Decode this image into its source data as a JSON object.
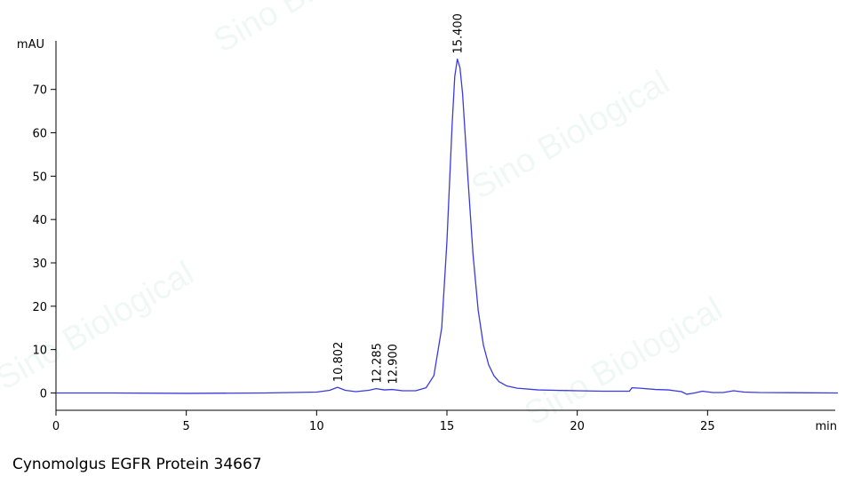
{
  "chart_data": {
    "type": "line",
    "ylabel": "mAU",
    "xlabel": "min",
    "caption": "Cynomolgus EGFR Protein 34667",
    "watermark": "Sino Biological",
    "xlim": [
      0,
      30
    ],
    "ylim": [
      -4,
      81
    ],
    "xticks": [
      0,
      5,
      10,
      15,
      20,
      25
    ],
    "yticks": [
      0,
      10,
      20,
      30,
      40,
      50,
      60,
      70
    ],
    "x": [
      0,
      2,
      5,
      8,
      10,
      10.5,
      10.8,
      11.1,
      11.5,
      12.0,
      12.285,
      12.6,
      12.9,
      13.3,
      13.8,
      14.2,
      14.5,
      14.8,
      15.0,
      15.2,
      15.3,
      15.4,
      15.5,
      15.6,
      15.8,
      16.0,
      16.2,
      16.4,
      16.6,
      16.8,
      17.0,
      17.3,
      17.7,
      18.5,
      20,
      21,
      22,
      22.1,
      22.4,
      23,
      23.5,
      24,
      24.2,
      24.5,
      24.8,
      25.2,
      25.6,
      26,
      26.4,
      27,
      30
    ],
    "series": [
      {
        "color": "#3a3ae0",
        "values": [
          0,
          0,
          -0.1,
          0,
          0.2,
          0.6,
          1.3,
          0.6,
          0.3,
          0.6,
          1.0,
          0.7,
          0.8,
          0.5,
          0.5,
          1.2,
          4,
          15,
          35,
          62,
          73,
          77,
          75,
          69,
          50,
          32,
          19,
          11,
          6.5,
          4,
          2.6,
          1.6,
          1.1,
          0.7,
          0.5,
          0.4,
          0.4,
          1.2,
          1.1,
          0.8,
          0.7,
          0.3,
          -0.3,
          0,
          0.4,
          0.1,
          0.1,
          0.5,
          0.2,
          0.1,
          0
        ]
      }
    ],
    "annotations": [
      {
        "x": 10.802,
        "y": 1.3,
        "label": "10.802"
      },
      {
        "x": 12.285,
        "y": 1.0,
        "label": "12.285"
      },
      {
        "x": 12.9,
        "y": 0.8,
        "label": "12.900"
      },
      {
        "x": 15.4,
        "y": 77,
        "label": "15.400"
      }
    ]
  }
}
